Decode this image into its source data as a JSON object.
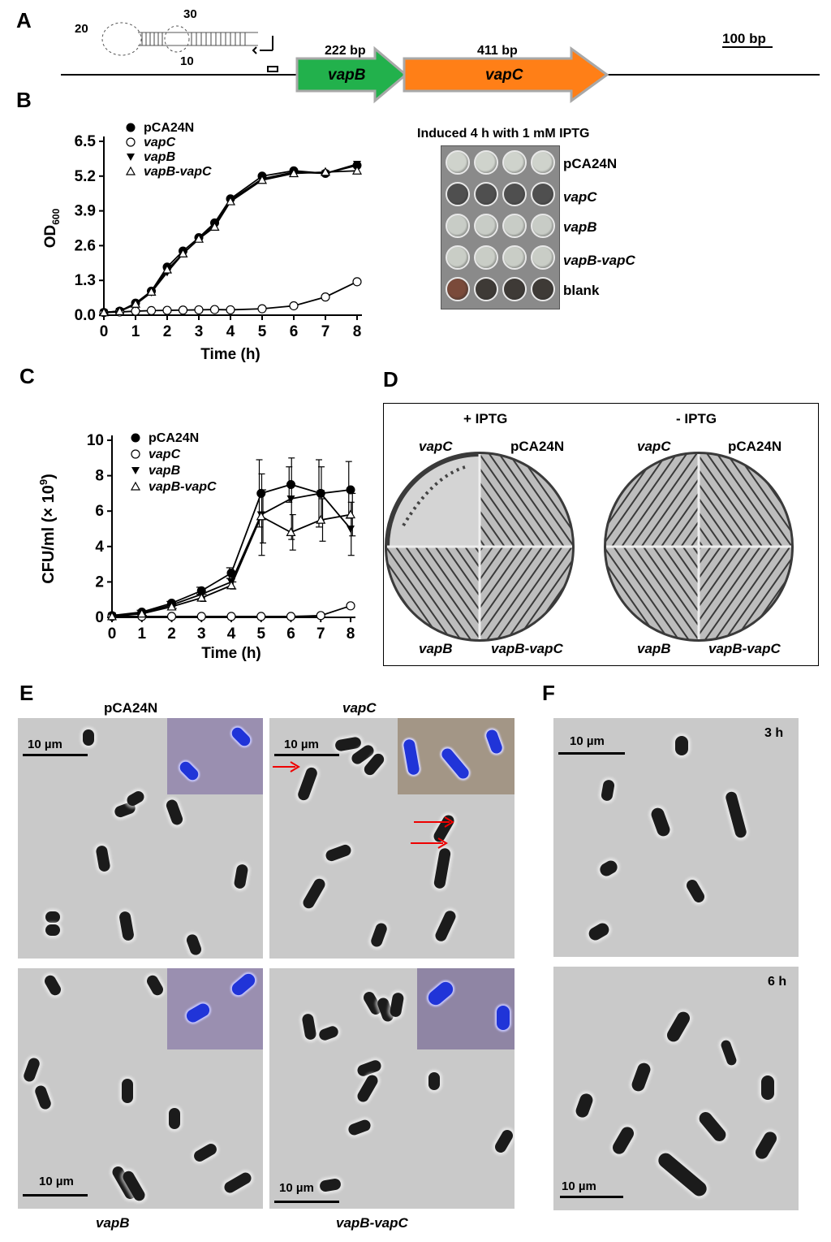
{
  "panels": {
    "A": "A",
    "B": "B",
    "C": "C",
    "D": "D",
    "E": "E",
    "F": "F"
  },
  "panel_a": {
    "loop_numbers": [
      "20",
      "30",
      "10"
    ],
    "vapB_size": "222 bp",
    "vapC_size": "411 bp",
    "vapB_label": "vapB",
    "vapC_label": "vapC",
    "scale_label": "100 bp",
    "vapB_color": "#22b14c",
    "vapC_color": "#ff7f17"
  },
  "chart_data": [
    {
      "type": "line",
      "panel": "B",
      "xlabel": "Time (h)",
      "ylabel": "OD600",
      "ylabel_main": "OD",
      "ylabel_sub": "600",
      "x": [
        0,
        0.5,
        1,
        1.5,
        2,
        2.5,
        3,
        3.5,
        4,
        5,
        6,
        7,
        8
      ],
      "xticks": [
        "0",
        "1",
        "2",
        "3",
        "4",
        "5",
        "6",
        "7",
        "8"
      ],
      "yticks": [
        "0.0",
        "1.3",
        "2.6",
        "3.9",
        "5.2",
        "6.5"
      ],
      "ylim": [
        0,
        6.5
      ],
      "xlim": [
        0,
        8
      ],
      "series": [
        {
          "name": "pCA24N",
          "marker": "filled-circle",
          "values": [
            0.1,
            0.15,
            0.45,
            0.9,
            1.8,
            2.4,
            2.9,
            3.45,
            4.35,
            5.2,
            5.4,
            5.3,
            5.6
          ]
        },
        {
          "name": "vapC",
          "marker": "open-circle",
          "values": [
            0.1,
            0.12,
            0.15,
            0.17,
            0.18,
            0.19,
            0.2,
            0.21,
            0.2,
            0.24,
            0.35,
            0.68,
            1.25
          ]
        },
        {
          "name": "vapB",
          "marker": "filled-triangle",
          "values": [
            0.1,
            0.15,
            0.4,
            0.85,
            1.6,
            2.3,
            2.85,
            3.4,
            4.3,
            5.1,
            5.35,
            5.3,
            5.65
          ]
        },
        {
          "name": "vapB-vapC",
          "marker": "open-triangle",
          "values": [
            0.1,
            0.14,
            0.42,
            0.87,
            1.7,
            2.3,
            2.85,
            3.3,
            4.25,
            5.05,
            5.3,
            5.35,
            5.4
          ]
        }
      ]
    },
    {
      "type": "line",
      "panel": "C",
      "xlabel": "Time (h)",
      "ylabel": "CFU/ml (×10⁹)",
      "ylabel_main": "CFU/ml (× 10",
      "ylabel_sup": "9",
      "ylabel_end": ")",
      "x": [
        0,
        1,
        2,
        3,
        4,
        5,
        6,
        7,
        8
      ],
      "xticks": [
        "0",
        "1",
        "2",
        "3",
        "4",
        "5",
        "6",
        "7",
        "8"
      ],
      "yticks": [
        "0",
        "2",
        "4",
        "6",
        "8",
        "10"
      ],
      "ylim": [
        0,
        10
      ],
      "xlim": [
        0,
        8
      ],
      "series": [
        {
          "name": "pCA24N",
          "marker": "filled-circle",
          "values": [
            0.1,
            0.3,
            0.8,
            1.5,
            2.5,
            7.0,
            7.5,
            7.0,
            7.2
          ],
          "errors": [
            0,
            0.1,
            0.1,
            0.2,
            0.3,
            1.9,
            1.0,
            1.9,
            1.6
          ]
        },
        {
          "name": "vapC",
          "marker": "open-circle",
          "values": [
            0.05,
            0.05,
            0.05,
            0.05,
            0.05,
            0.05,
            0.05,
            0.1,
            0.65
          ],
          "errors": [
            0,
            0,
            0,
            0,
            0,
            0,
            0,
            0,
            0.1
          ]
        },
        {
          "name": "vapB",
          "marker": "filled-triangle",
          "values": [
            0.1,
            0.25,
            0.7,
            1.3,
            2.0,
            5.8,
            6.7,
            7.0,
            5.0
          ],
          "errors": [
            0,
            0.1,
            0.1,
            0.2,
            0.3,
            2.3,
            2.3,
            1.5,
            1.5
          ]
        },
        {
          "name": "vapB-vapC",
          "marker": "open-triangle",
          "values": [
            0.05,
            0.2,
            0.6,
            1.1,
            1.8,
            5.7,
            4.8,
            5.5,
            5.8
          ],
          "errors": [
            0,
            0.1,
            0.1,
            0.2,
            0.2,
            1.5,
            1.0,
            1.2,
            1.2
          ]
        }
      ]
    }
  ],
  "panel_b_plate": {
    "title": "Induced 4 h with 1 mM IPTG",
    "rows": [
      "pCA24N",
      "vapC",
      "vapB",
      "vapB-vapC",
      "blank"
    ]
  },
  "panel_d": {
    "plus_label": "+ IPTG",
    "minus_label": "- IPTG",
    "quadrants": {
      "tl": "vapC",
      "tr": "pCA24N",
      "bl": "vapB",
      "br": "vapB-vapC"
    }
  },
  "panel_e": {
    "titles": {
      "tl": "pCA24N",
      "tr": "vapC",
      "bl": "vapB",
      "br": "vapB-vapC"
    },
    "scale": "10 µm"
  },
  "panel_f": {
    "times": {
      "top": "3 h",
      "bottom": "6 h"
    },
    "scale": "10 µm"
  }
}
